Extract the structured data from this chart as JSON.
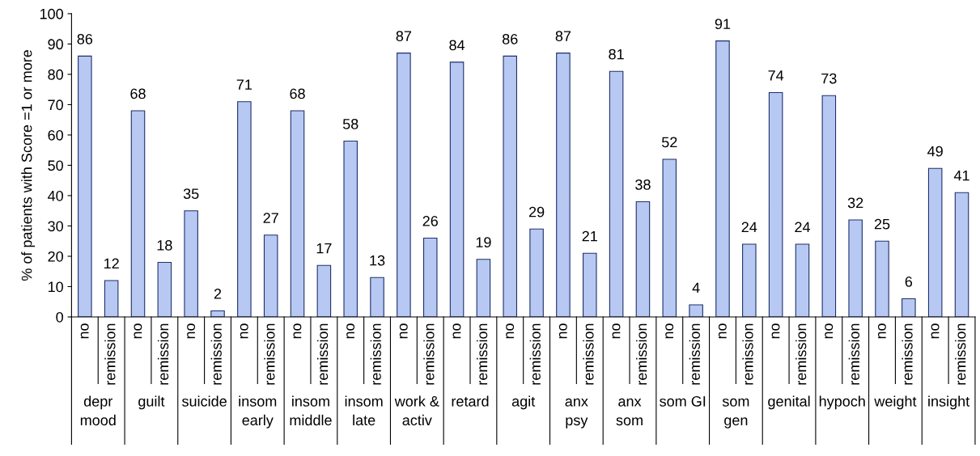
{
  "chart_data": {
    "type": "bar",
    "ylabel": "% of patients with Score =1 or more",
    "categories": [
      "depr\nmood",
      "guilt",
      "suicide",
      "insom\nearly",
      "insom\nmiddle",
      "insom\nlate",
      "work &\nactiv",
      "retard",
      "agit",
      "anx\npsy",
      "anx\nsom",
      "som GI",
      "som\ngen",
      "genital",
      "hypoch",
      "weight",
      "insight"
    ],
    "series": [
      {
        "name": "no",
        "color": "#b7c9f2",
        "values": [
          86,
          68,
          35,
          71,
          68,
          58,
          87,
          84,
          86,
          87,
          81,
          52,
          91,
          74,
          73,
          25,
          49
        ]
      },
      {
        "name": "remission",
        "color": "#b7c9f2",
        "values": [
          12,
          18,
          2,
          27,
          17,
          13,
          26,
          19,
          29,
          21,
          38,
          4,
          24,
          24,
          32,
          6,
          41
        ]
      }
    ],
    "ylim": [
      0,
      100
    ],
    "yticks": [
      0,
      10,
      20,
      30,
      40,
      50,
      60,
      70,
      80,
      90,
      100
    ],
    "data_labels": true,
    "grid": false,
    "legend": false
  }
}
